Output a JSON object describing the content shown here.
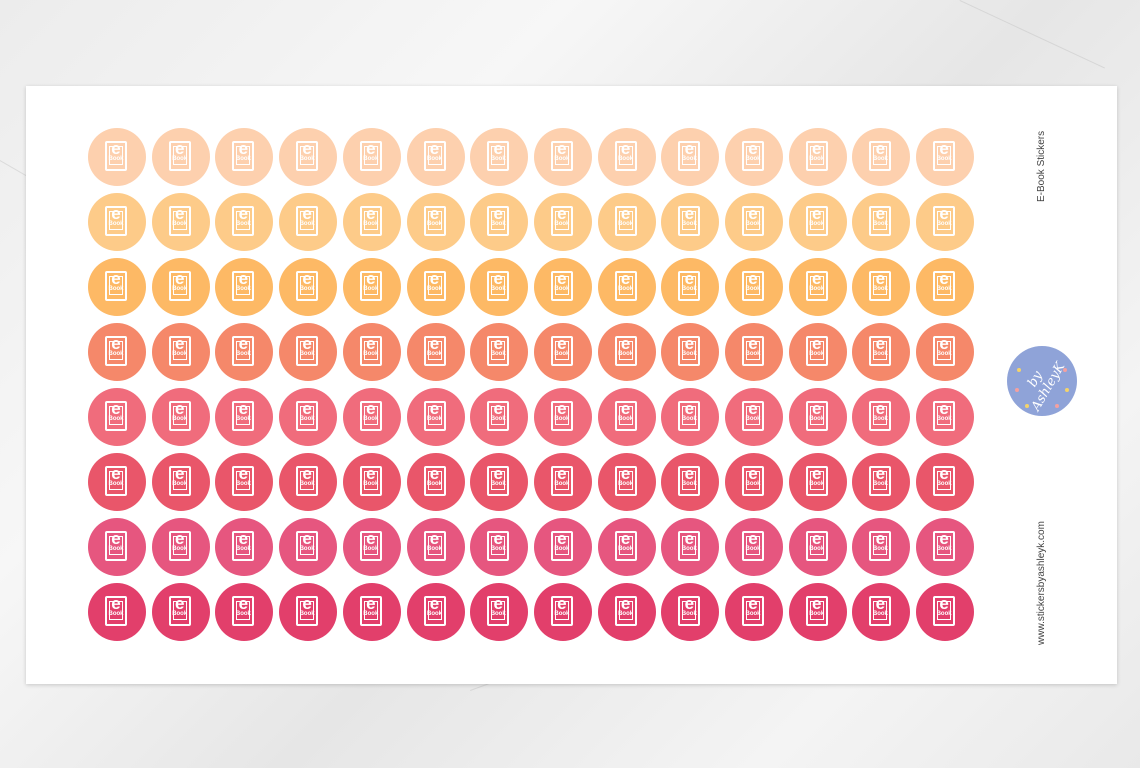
{
  "product": {
    "title": "E-Book Stickers",
    "website": "www.stickersbyashleyk.com",
    "logo_text": "by AshleyK"
  },
  "sticker": {
    "icon": "ebook-tablet-icon",
    "letter": "e",
    "word": "Book",
    "columns": 14,
    "row_colors": [
      "#fdd0ae",
      "#fdcb89",
      "#fdb965",
      "#f5886a",
      "#f06c7c",
      "#e9566a",
      "#e6567f",
      "#e23f6b"
    ]
  }
}
